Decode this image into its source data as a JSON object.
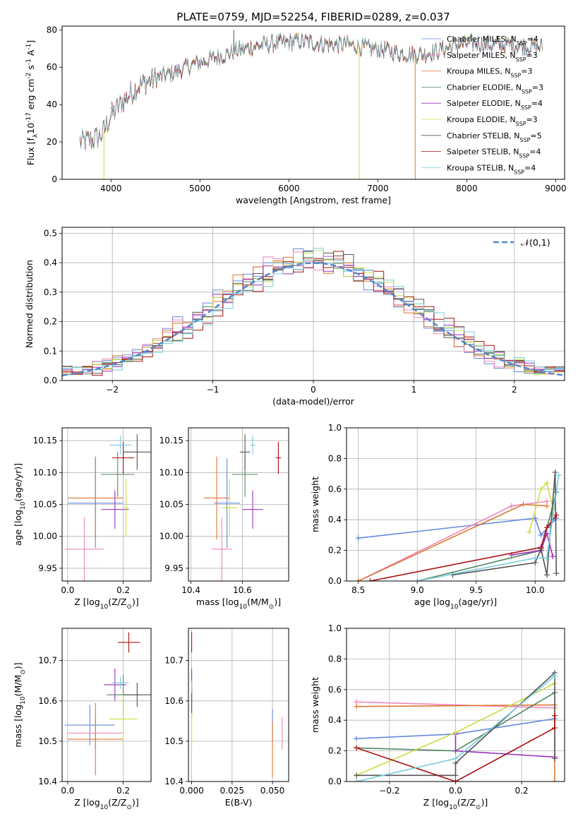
{
  "figure": {
    "title": "PLATE=0759, MJD=52254, FIBERID=0289, z=0.037"
  },
  "colors": {
    "Chabrier MILES": "#6688dd",
    "Salpeter MILES": "#ee88bb",
    "Kroupa MILES": "#dd7733",
    "Chabrier ELODIE": "#558866",
    "Salpeter ELODIE": "#9933bb",
    "Kroupa ELODIE": "#ccdd44",
    "Chabrier STELIB": "#555555",
    "Salpeter STELIB": "#aa1111",
    "Kroupa STELIB": "#77ccdd",
    "gauss": "#5588cc"
  },
  "chart_data": [
    {
      "id": "spectrum",
      "type": "line",
      "xlabel": "wavelength [Angstrom, rest frame]",
      "ylabel": "Flux [f$_\\lambda$10$^{-17}$ erg cm$^{-2}$ s$^{-1}$ A$^{-1}$]",
      "xlim": [
        3450,
        9100
      ],
      "ylim": [
        0,
        82
      ],
      "xticks": [
        4000,
        5000,
        6000,
        7000,
        8000,
        9000
      ],
      "yticks": [
        0,
        20,
        40,
        60,
        80
      ],
      "grid": false,
      "legend": "top-right",
      "series": [
        {
          "name": "Chabrier MILES, N$_{SSP}$=4",
          "model": "Chabrier MILES"
        },
        {
          "name": "Salpeter MILES, N$_{SSP}$=3",
          "model": "Salpeter MILES"
        },
        {
          "name": "Kroupa MILES, N$_{SSP}$=3",
          "model": "Kroupa MILES"
        },
        {
          "name": "Chabrier ELODIE, N$_{SSP}$=3",
          "model": "Chabrier ELODIE"
        },
        {
          "name": "Salpeter ELODIE, N$_{SSP}$=4",
          "model": "Salpeter ELODIE"
        },
        {
          "name": "Kroupa ELODIE, N$_{SSP}$=3",
          "model": "Kroupa ELODIE"
        },
        {
          "name": "Chabrier STELIB, N$_{SSP}$=5",
          "model": "Chabrier STELIB"
        },
        {
          "name": "Salpeter STELIB, N$_{SSP}$=4",
          "model": "Salpeter STELIB"
        },
        {
          "name": "Kroupa STELIB, N$_{SSP}$=4",
          "model": "Kroupa STELIB"
        }
      ],
      "continuum": {
        "x": [
          3650,
          3800,
          3900,
          4000,
          4100,
          4300,
          4500,
          4700,
          4900,
          5100,
          5300,
          5500,
          5700,
          5900,
          6100,
          6300,
          6500,
          6700,
          6900,
          7100,
          7300,
          7500,
          7700,
          7900,
          8100,
          8300,
          8500,
          8700,
          8850
        ],
        "y": [
          20,
          21,
          24,
          34,
          40,
          50,
          54,
          57,
          61,
          64,
          67,
          70,
          72,
          73,
          74,
          73,
          72,
          72,
          70,
          69,
          67,
          67,
          69,
          72,
          73,
          72,
          72,
          71,
          71
        ]
      },
      "spikes": [
        {
          "x": 5380,
          "y": 80,
          "model": "Chabrier STELIB"
        },
        {
          "x": 3920,
          "y": 0,
          "model": "Kroupa ELODIE"
        },
        {
          "x": 6790,
          "y": 0,
          "model": "Kroupa ELODIE"
        },
        {
          "x": 7420,
          "y": 0,
          "model": "Kroupa MILES"
        }
      ]
    },
    {
      "id": "residuals",
      "type": "histogram",
      "xlabel": "(data-model)/error",
      "ylabel": "Normed distribution",
      "xlim": [
        -2.5,
        2.5
      ],
      "ylim": [
        0,
        0.52
      ],
      "xticks": [
        -2,
        -1,
        0,
        1,
        2
      ],
      "yticks": [
        0.0,
        0.1,
        0.2,
        0.3,
        0.4,
        0.5
      ],
      "grid": true,
      "legend": "top-right",
      "gauss_label": "$\\mathcal{N}(0,1)$",
      "bin_width": 0.1
    },
    {
      "id": "Z-age",
      "type": "errorbar",
      "xlabel": "Z [log$_{10}$(Z/Z$_\\odot$)]",
      "ylabel": "age  [log$_{10}$(age/yr)]",
      "xlim": [
        -0.02,
        0.3
      ],
      "ylim": [
        9.93,
        10.17
      ],
      "xticks": [
        0.0,
        0.2
      ],
      "yticks": [
        9.95,
        10.0,
        10.05,
        10.1,
        10.15
      ],
      "grid": true,
      "points": [
        {
          "model": "Chabrier MILES",
          "x": 0.1,
          "xerr": 0.1,
          "y": 10.052,
          "yerr": 0.07
        },
        {
          "model": "Salpeter MILES",
          "x": 0.06,
          "xerr": 0.07,
          "y": 9.98,
          "yerr": 0.05
        },
        {
          "model": "Kroupa MILES",
          "x": 0.1,
          "xerr": 0.1,
          "y": 10.06,
          "yerr": 0.065
        },
        {
          "model": "Chabrier ELODIE",
          "x": 0.18,
          "xerr": 0.06,
          "y": 10.097,
          "yerr": 0.035
        },
        {
          "model": "Salpeter ELODIE",
          "x": 0.17,
          "xerr": 0.05,
          "y": 10.042,
          "yerr": 0.03
        },
        {
          "model": "Kroupa ELODIE",
          "x": 0.21,
          "xerr": 0.01,
          "y": 10.045,
          "yerr": 0.045
        },
        {
          "model": "Chabrier STELIB",
          "x": 0.25,
          "xerr": 0.05,
          "y": 10.132,
          "yerr": 0.028
        },
        {
          "model": "Salpeter STELIB",
          "x": 0.2,
          "xerr": 0.04,
          "y": 10.123,
          "yerr": 0.025
        },
        {
          "model": "Kroupa STELIB",
          "x": 0.19,
          "xerr": 0.04,
          "y": 10.143,
          "yerr": 0.015
        }
      ]
    },
    {
      "id": "mass-age",
      "type": "errorbar",
      "xlabel": "mass [log$_{10}$(M/M$_\\odot$)]",
      "ylabel": "",
      "xlim": [
        10.39,
        10.78
      ],
      "ylim": [
        9.93,
        10.17
      ],
      "xticks": [
        10.4,
        10.6
      ],
      "yticks": [
        9.95,
        10.0,
        10.05,
        10.1,
        10.15
      ],
      "grid": true,
      "points": [
        {
          "model": "Chabrier MILES",
          "x": 10.54,
          "xerr": 0.05,
          "y": 10.052,
          "yerr": 0.07
        },
        {
          "model": "Salpeter MILES",
          "x": 10.52,
          "xerr": 0.04,
          "y": 9.98,
          "yerr": 0.05
        },
        {
          "model": "Kroupa MILES",
          "x": 10.5,
          "xerr": 0.05,
          "y": 10.06,
          "yerr": 0.065
        },
        {
          "model": "Chabrier ELODIE",
          "x": 10.61,
          "xerr": 0.05,
          "y": 10.097,
          "yerr": 0.035
        },
        {
          "model": "Salpeter ELODIE",
          "x": 10.64,
          "xerr": 0.04,
          "y": 10.042,
          "yerr": 0.03
        },
        {
          "model": "Kroupa ELODIE",
          "x": 10.55,
          "xerr": 0.03,
          "y": 10.045,
          "yerr": 0.045
        },
        {
          "model": "Chabrier STELIB",
          "x": 10.61,
          "xerr": 0.02,
          "y": 10.132,
          "yerr": 0.028
        },
        {
          "model": "Salpeter STELIB",
          "x": 10.74,
          "xerr": 0.01,
          "y": 10.123,
          "yerr": 0.025
        },
        {
          "model": "Kroupa STELIB",
          "x": 10.64,
          "xerr": 0.01,
          "y": 10.143,
          "yerr": 0.015
        }
      ]
    },
    {
      "id": "Z-mass",
      "type": "errorbar",
      "xlabel": "Z [log$_{10}$(Z/Z$_\\odot$)]",
      "ylabel": "mass [log$_{10}$(M/M$_\\odot$)]",
      "xlim": [
        -0.02,
        0.3
      ],
      "ylim": [
        10.4,
        10.78
      ],
      "xticks": [
        0.0,
        0.2
      ],
      "yticks": [
        10.4,
        10.5,
        10.6,
        10.7
      ],
      "grid": true,
      "points": [
        {
          "model": "Chabrier MILES",
          "x": 0.08,
          "xerr": 0.09,
          "y": 10.54,
          "yerr": 0.05
        },
        {
          "model": "Salpeter MILES",
          "x": 0.1,
          "xerr": 0.1,
          "y": 10.52,
          "yerr": 0.04
        },
        {
          "model": "Kroupa MILES",
          "x": 0.1,
          "xerr": 0.1,
          "y": 10.505,
          "yerr": 0.09
        },
        {
          "model": "Chabrier ELODIE",
          "x": 0.2,
          "xerr": 0.06,
          "y": 10.615,
          "yerr": 0.05
        },
        {
          "model": "Salpeter ELODIE",
          "x": 0.17,
          "xerr": 0.04,
          "y": 10.64,
          "yerr": 0.04
        },
        {
          "model": "Kroupa ELODIE",
          "x": 0.2,
          "xerr": 0.05,
          "y": 10.555,
          "yerr": 0.06
        },
        {
          "model": "Chabrier STELIB",
          "x": 0.25,
          "xerr": 0.05,
          "y": 10.615,
          "yerr": 0.03
        },
        {
          "model": "Salpeter STELIB",
          "x": 0.22,
          "xerr": 0.04,
          "y": 10.745,
          "yerr": 0.025
        },
        {
          "model": "Kroupa STELIB",
          "x": 0.19,
          "xerr": 0.03,
          "y": 10.645,
          "yerr": 0.015
        }
      ]
    },
    {
      "id": "ebv-mass",
      "type": "errorbar",
      "xlabel": "E(B-V)",
      "ylabel": "",
      "xlim": [
        -0.002,
        0.06
      ],
      "ylim": [
        10.4,
        10.78
      ],
      "xticks": [
        0.0,
        0.025,
        0.05
      ],
      "xtick_labels": [
        "0.000",
        "0.025",
        "0.050"
      ],
      "yticks": [
        10.4,
        10.5,
        10.6,
        10.7
      ],
      "grid": true,
      "points": [
        {
          "model": "Chabrier MILES",
          "x": 0.05,
          "xerr": 0.0,
          "y": 10.54,
          "yerr": 0.04
        },
        {
          "model": "Salpeter MILES",
          "x": 0.056,
          "xerr": 0.0,
          "y": 10.52,
          "yerr": 0.04
        },
        {
          "model": "Kroupa MILES",
          "x": 0.05,
          "xerr": 0.0,
          "y": 10.48,
          "yerr": 0.07
        },
        {
          "model": "Chabrier ELODIE",
          "x": 0.0,
          "xerr": 0.0,
          "y": 10.615,
          "yerr": 0.05
        },
        {
          "model": "Salpeter ELODIE",
          "x": 0.0,
          "xerr": 0.0,
          "y": 10.64,
          "yerr": 0.04
        },
        {
          "model": "Kroupa ELODIE",
          "x": 0.0,
          "xerr": 0.0,
          "y": 10.53,
          "yerr": 0.04
        },
        {
          "model": "Chabrier STELIB",
          "x": 0.0,
          "xerr": 0.0,
          "y": 10.6,
          "yerr": 0.03
        },
        {
          "model": "Salpeter STELIB",
          "x": 0.0,
          "xerr": 0.0,
          "y": 10.745,
          "yerr": 0.025
        },
        {
          "model": "Kroupa STELIB",
          "x": 0.0,
          "xerr": 0.0,
          "y": 10.635,
          "yerr": 0.015
        }
      ]
    },
    {
      "id": "age-weight",
      "type": "line",
      "xlabel": "age  [log$_{10}$(age/yr)]",
      "ylabel": "mass weight",
      "xlim": [
        8.4,
        10.25
      ],
      "ylim": [
        0,
        1
      ],
      "xticks": [
        8.5,
        9.0,
        9.5,
        10.0
      ],
      "yticks": [
        0.0,
        0.2,
        0.4,
        0.6,
        0.8,
        1.0
      ],
      "grid": true,
      "series": [
        {
          "model": "Chabrier MILES",
          "x": [
            8.5,
            10.0,
            10.05,
            10.18
          ],
          "y": [
            0.28,
            0.41,
            0.3,
            0.41
          ]
        },
        {
          "model": "Salpeter MILES",
          "x": [
            8.5,
            9.8,
            10.1
          ],
          "y": [
            0.0,
            0.49,
            0.52
          ]
        },
        {
          "model": "Kroupa MILES",
          "x": [
            8.5,
            9.9,
            10.1
          ],
          "y": [
            0.0,
            0.5,
            0.49
          ]
        },
        {
          "model": "Chabrier ELODIE",
          "x": [
            9.0,
            10.05,
            10.18
          ],
          "y": [
            0.0,
            0.2,
            0.58
          ]
        },
        {
          "model": "Salpeter ELODIE",
          "x": [
            9.8,
            10.05,
            10.1,
            10.15
          ],
          "y": [
            0.17,
            0.2,
            0.31,
            0.16
          ]
        },
        {
          "model": "Kroupa ELODIE",
          "x": [
            9.95,
            10.05,
            10.1,
            10.15
          ],
          "y": [
            0.32,
            0.6,
            0.64,
            0.48
          ]
        },
        {
          "model": "Chabrier STELIB",
          "x": [
            9.3,
            10.0,
            10.05,
            10.1,
            10.17,
            10.18
          ],
          "y": [
            0.04,
            0.12,
            0.21,
            0.04,
            0.71,
            0.05
          ]
        },
        {
          "model": "Salpeter STELIB",
          "x": [
            8.6,
            10.05,
            10.1,
            10.18
          ],
          "y": [
            0.0,
            0.22,
            0.35,
            0.43
          ]
        },
        {
          "model": "Kroupa STELIB",
          "x": [
            9.0,
            10.0,
            10.1,
            10.2
          ],
          "y": [
            0.0,
            0.15,
            0.15,
            0.69
          ]
        }
      ]
    },
    {
      "id": "Z-weight",
      "type": "line",
      "xlabel": "Z [log$_{10}$(Z/Z$_\\odot$)]",
      "ylabel": "mass weight",
      "xlim": [
        -0.33,
        0.33
      ],
      "ylim": [
        0,
        1
      ],
      "xticks": [
        -0.2,
        0.0,
        0.2
      ],
      "yticks": [
        0.0,
        0.2,
        0.4,
        0.6,
        0.8,
        1.0
      ],
      "grid": true,
      "series": [
        {
          "model": "Chabrier MILES",
          "x": [
            -0.3,
            0.0,
            0.3
          ],
          "y": [
            0.28,
            0.31,
            0.41
          ]
        },
        {
          "model": "Salpeter MILES",
          "x": [
            -0.3,
            0.3
          ],
          "y": [
            0.52,
            0.48
          ]
        },
        {
          "model": "Kroupa MILES",
          "x": [
            -0.3,
            0.3,
            0.3
          ],
          "y": [
            0.49,
            0.5,
            0.0
          ]
        },
        {
          "model": "Chabrier ELODIE",
          "x": [
            -0.3,
            0.0,
            0.3
          ],
          "y": [
            0.22,
            0.2,
            0.58
          ]
        },
        {
          "model": "Salpeter ELODIE",
          "x": [
            0.0,
            0.0,
            0.3
          ],
          "y": [
            0.31,
            0.2,
            0.16
          ]
        },
        {
          "model": "Kroupa ELODIE",
          "x": [
            -0.3,
            0.0,
            0.3
          ],
          "y": [
            0.04,
            0.32,
            0.64
          ]
        },
        {
          "model": "Chabrier STELIB",
          "x": [
            -0.3,
            0.0,
            0.0,
            0.3,
            0.3
          ],
          "y": [
            0.04,
            0.04,
            0.12,
            0.71,
            0.15
          ]
        },
        {
          "model": "Salpeter STELIB",
          "x": [
            -0.3,
            0.0,
            0.3,
            0.3
          ],
          "y": [
            0.22,
            0.0,
            0.35,
            0.43
          ]
        },
        {
          "model": "Kroupa STELIB",
          "x": [
            -0.3,
            0.0,
            0.3
          ],
          "y": [
            0.0,
            0.15,
            0.69
          ]
        }
      ]
    }
  ]
}
